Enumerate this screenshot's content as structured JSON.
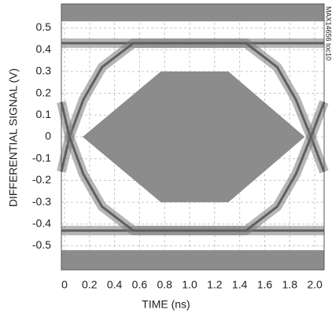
{
  "chart_data": {
    "type": "eye",
    "xlabel": "TIME (ns)",
    "ylabel": "DIFFERENTIAL SIGNAL (V)",
    "annotation": "MAX14656 toc10",
    "xlim": [
      -0.025,
      2.075
    ],
    "ylim": [
      -0.61,
      0.61
    ],
    "xticks": [
      0,
      0.2,
      0.4,
      0.6,
      0.8,
      {
        "value": 1,
        "label": "1.0"
      },
      1.2,
      1.4,
      1.6,
      1.8,
      {
        "value": 2,
        "label": "2.0"
      }
    ],
    "yticks": [
      0.5,
      0.4,
      0.3,
      0.2,
      0.1,
      0,
      -0.1,
      -0.2,
      -0.3,
      -0.4,
      -0.5
    ],
    "grid": true,
    "color": "#7a7a7a",
    "bands": [
      [
        0.53,
        0.61
      ],
      [
        -0.61,
        -0.52
      ]
    ],
    "mask": {
      "x": [
        0.145,
        0.77,
        1.31,
        1.92,
        1.31,
        0.77
      ],
      "y": [
        0,
        0.3,
        0.3,
        0,
        -0.3,
        -0.3
      ]
    },
    "series": [
      {
        "x": [
          -0.025,
          2.075
        ],
        "values": [
          0.43,
          0.43
        ]
      },
      {
        "x": [
          -0.025,
          2.075
        ],
        "values": [
          -0.43,
          -0.43
        ]
      },
      {
        "x": [
          -0.025,
          0.04,
          0.15,
          0.3,
          0.55,
          1.45,
          1.7,
          1.85,
          1.97,
          2.075
        ],
        "values": [
          -0.16,
          0,
          0.17,
          0.32,
          0.43,
          0.43,
          0.32,
          0.17,
          0,
          -0.16
        ]
      },
      {
        "x": [
          -0.025,
          0.04,
          0.15,
          0.3,
          0.55,
          1.45,
          1.7,
          1.85,
          1.97,
          2.075
        ],
        "values": [
          0.16,
          0,
          -0.17,
          -0.32,
          -0.43,
          -0.43,
          -0.32,
          -0.17,
          0,
          0.16
        ]
      }
    ]
  }
}
